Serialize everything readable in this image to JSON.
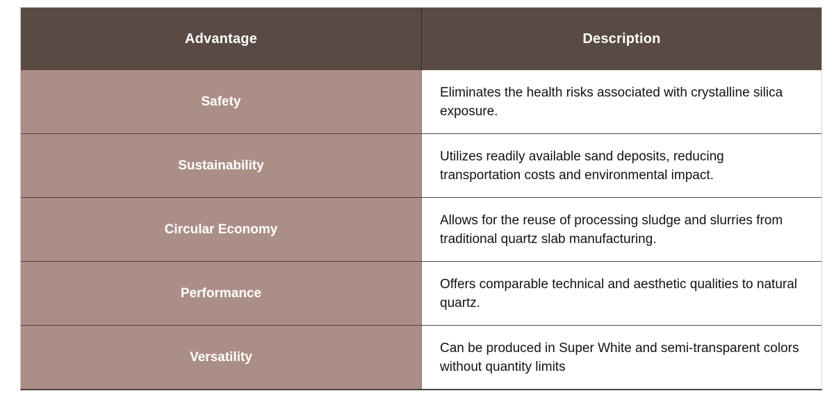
{
  "table": {
    "columns": [
      {
        "label": "Advantage"
      },
      {
        "label": "Description"
      }
    ],
    "rows": [
      {
        "advantage": "Safety",
        "description": "Eliminates the health risks associated with crystalline silica exposure."
      },
      {
        "advantage": "Sustainability",
        "description": "Utilizes readily available sand deposits, reducing transportation costs and environmental impact."
      },
      {
        "advantage": "Circular Economy",
        "description": "Allows for the reuse of processing sludge and slurries from traditional quartz slab manufacturing."
      },
      {
        "advantage": "Performance",
        "description": "Offers comparable technical and aesthetic qualities to natural quartz."
      },
      {
        "advantage": "Versatility",
        "description": "Can be produced in Super White and semi-transparent colors without quantity limits"
      }
    ],
    "colors": {
      "header_bg": "#594a43",
      "header_text": "#ffffff",
      "advantage_bg": "#ab8e86",
      "advantage_text": "#ffffff",
      "description_bg": "#ffffff",
      "description_text": "#121212",
      "row_divider": "#4f4543",
      "column_divider_header": "#352b26",
      "column_divider_body": "#7c7572",
      "outer_border": "#d8d3d1",
      "bottom_border": "#463f3c"
    }
  }
}
